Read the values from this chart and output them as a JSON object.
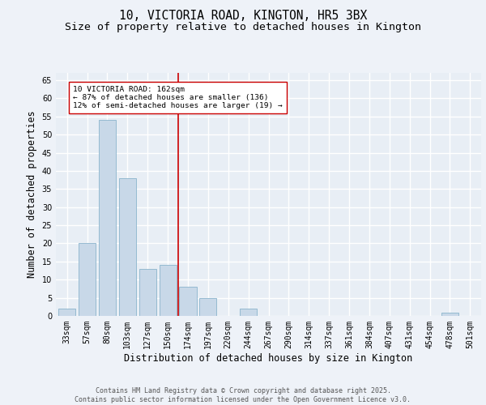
{
  "title1": "10, VICTORIA ROAD, KINGTON, HR5 3BX",
  "title2": "Size of property relative to detached houses in Kington",
  "xlabel": "Distribution of detached houses by size in Kington",
  "ylabel": "Number of detached properties",
  "bar_color": "#c8d8e8",
  "bar_edge_color": "#8ab4cc",
  "categories": [
    "33sqm",
    "57sqm",
    "80sqm",
    "103sqm",
    "127sqm",
    "150sqm",
    "174sqm",
    "197sqm",
    "220sqm",
    "244sqm",
    "267sqm",
    "290sqm",
    "314sqm",
    "337sqm",
    "361sqm",
    "384sqm",
    "407sqm",
    "431sqm",
    "454sqm",
    "478sqm",
    "501sqm"
  ],
  "values": [
    2,
    20,
    54,
    38,
    13,
    14,
    8,
    5,
    0,
    2,
    0,
    0,
    0,
    0,
    0,
    0,
    0,
    0,
    0,
    1,
    0
  ],
  "ylim": [
    0,
    67
  ],
  "yticks": [
    0,
    5,
    10,
    15,
    20,
    25,
    30,
    35,
    40,
    45,
    50,
    55,
    60,
    65
  ],
  "vline_x": 5.5,
  "vline_color": "#cc0000",
  "annotation_text": "10 VICTORIA ROAD: 162sqm\n← 87% of detached houses are smaller (136)\n12% of semi-detached houses are larger (19) →",
  "annotation_box_color": "#ffffff",
  "annotation_box_edge": "#cc0000",
  "bg_color": "#e8eef5",
  "fig_bg_color": "#eef2f8",
  "footer": "Contains HM Land Registry data © Crown copyright and database right 2025.\nContains public sector information licensed under the Open Government Licence v3.0.",
  "grid_color": "#ffffff",
  "title_fontsize": 10.5,
  "subtitle_fontsize": 9.5,
  "tick_fontsize": 7,
  "label_fontsize": 8.5,
  "footer_fontsize": 6.0
}
